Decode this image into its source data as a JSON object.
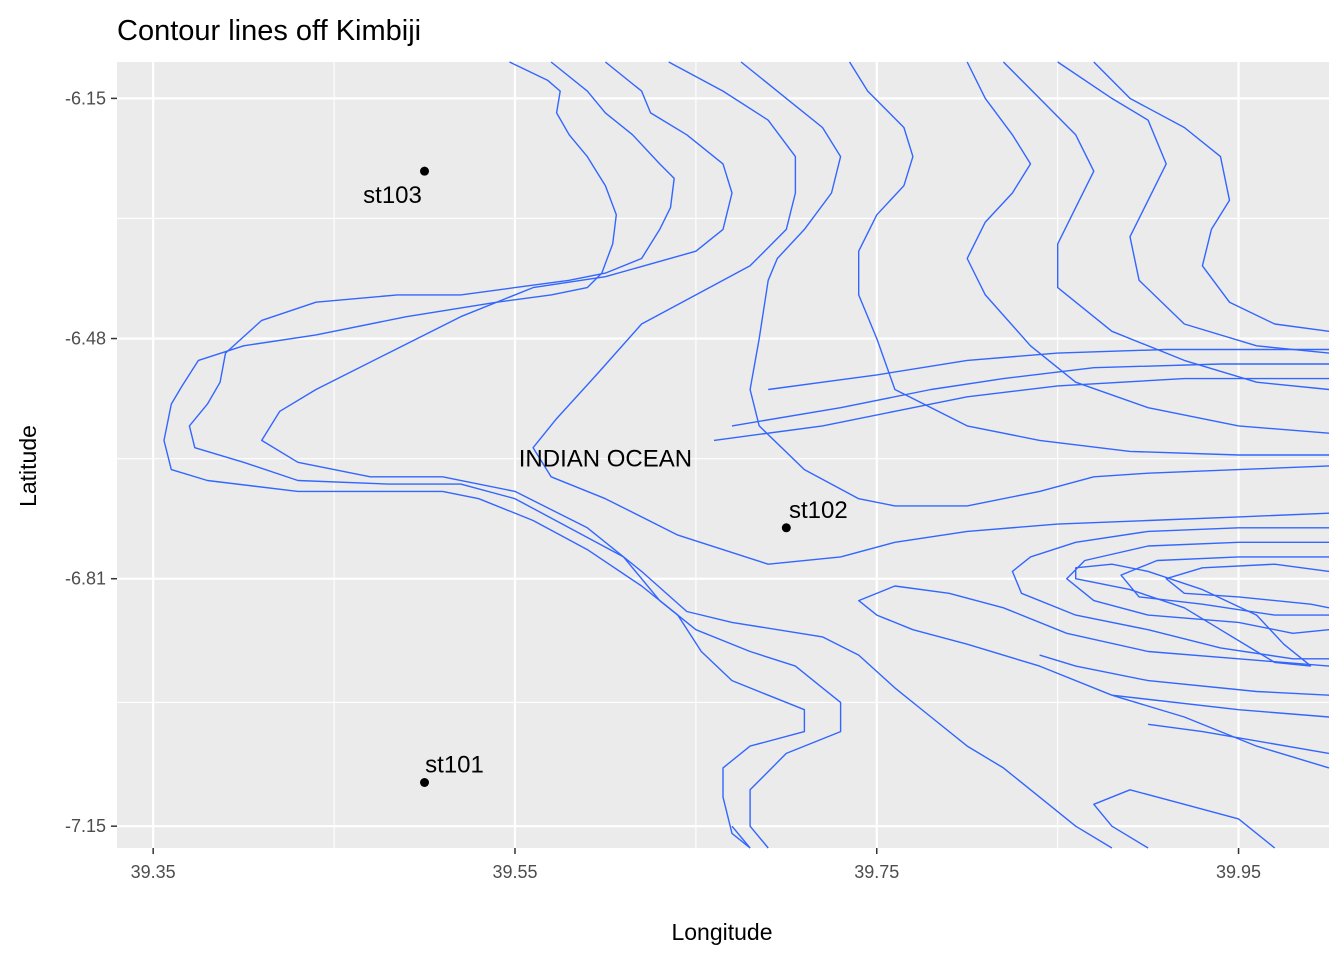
{
  "chart_data": {
    "type": "contour",
    "title": "Contour lines off Kimbiji",
    "xlabel": "Longitude",
    "ylabel": "Latitude",
    "xlim": [
      39.33,
      40.0
    ],
    "ylim": [
      -7.18,
      -6.1
    ],
    "x_ticks": [
      39.35,
      39.55,
      39.75,
      39.95
    ],
    "x_tick_labels": [
      "39.35",
      "39.55",
      "39.75",
      "39.95"
    ],
    "y_ticks": [
      -6.15,
      -6.48,
      -6.81,
      -7.15
    ],
    "y_tick_labels": [
      "-6.15",
      "-6.48",
      "-6.81",
      "-7.15"
    ],
    "grid": true,
    "contour_color": "#3366ff",
    "panel_background": "#ebebeb",
    "stations": [
      {
        "name": "st103",
        "lon": 39.5,
        "lat": -6.25
      },
      {
        "name": "st102",
        "lon": 39.7,
        "lat": -6.74
      },
      {
        "name": "st101",
        "lon": 39.5,
        "lat": -7.09
      }
    ],
    "annotation": {
      "text": "INDIAN OCEAN",
      "lon": 39.6,
      "lat": -6.645
    },
    "contours": [
      [
        [
          39.547,
          -6.1
        ],
        [
          39.568,
          -6.125
        ],
        [
          39.575,
          -6.14
        ],
        [
          39.573,
          -6.17
        ],
        [
          39.58,
          -6.2
        ],
        [
          39.59,
          -6.23
        ],
        [
          39.6,
          -6.27
        ],
        [
          39.606,
          -6.31
        ],
        [
          39.604,
          -6.35
        ],
        [
          39.598,
          -6.39
        ],
        [
          39.59,
          -6.41
        ],
        [
          39.57,
          -6.42
        ],
        [
          39.54,
          -6.43
        ],
        [
          39.49,
          -6.45
        ],
        [
          39.44,
          -6.475
        ],
        [
          39.4,
          -6.49
        ],
        [
          39.375,
          -6.51
        ],
        [
          39.366,
          -6.545
        ],
        [
          39.36,
          -6.57
        ],
        [
          39.356,
          -6.62
        ],
        [
          39.36,
          -6.66
        ],
        [
          39.38,
          -6.675
        ],
        [
          39.43,
          -6.69
        ],
        [
          39.47,
          -6.69
        ],
        [
          39.51,
          -6.69
        ],
        [
          39.53,
          -6.7
        ],
        [
          39.56,
          -6.73
        ],
        [
          39.59,
          -6.77
        ],
        [
          39.62,
          -6.82
        ],
        [
          39.64,
          -6.86
        ],
        [
          39.653,
          -6.91
        ],
        [
          39.67,
          -6.95
        ],
        [
          39.69,
          -6.97
        ],
        [
          39.71,
          -6.99
        ],
        [
          39.71,
          -7.02
        ],
        [
          39.68,
          -7.04
        ],
        [
          39.665,
          -7.07
        ],
        [
          39.665,
          -7.11
        ],
        [
          39.67,
          -7.16
        ],
        [
          39.68,
          -7.18
        ]
      ],
      [
        [
          39.57,
          -6.1
        ],
        [
          39.59,
          -6.14
        ],
        [
          39.6,
          -6.17
        ],
        [
          39.615,
          -6.2
        ],
        [
          39.63,
          -6.24
        ],
        [
          39.638,
          -6.26
        ],
        [
          39.636,
          -6.3
        ],
        [
          39.63,
          -6.33
        ],
        [
          39.62,
          -6.37
        ],
        [
          39.6,
          -6.39
        ],
        [
          39.58,
          -6.4
        ],
        [
          39.55,
          -6.41
        ],
        [
          39.52,
          -6.42
        ],
        [
          39.485,
          -6.42
        ],
        [
          39.44,
          -6.43
        ],
        [
          39.41,
          -6.455
        ],
        [
          39.39,
          -6.5
        ],
        [
          39.387,
          -6.54
        ],
        [
          39.38,
          -6.57
        ],
        [
          39.37,
          -6.6
        ],
        [
          39.373,
          -6.63
        ],
        [
          39.4,
          -6.65
        ],
        [
          39.43,
          -6.675
        ],
        [
          39.48,
          -6.68
        ],
        [
          39.52,
          -6.68
        ],
        [
          39.55,
          -6.7
        ],
        [
          39.58,
          -6.74
        ],
        [
          39.61,
          -6.78
        ],
        [
          39.63,
          -6.84
        ],
        [
          39.65,
          -6.88
        ],
        [
          39.68,
          -6.91
        ],
        [
          39.705,
          -6.93
        ],
        [
          39.72,
          -6.96
        ],
        [
          39.73,
          -6.98
        ],
        [
          39.73,
          -7.02
        ],
        [
          39.7,
          -7.05
        ],
        [
          39.68,
          -7.1
        ],
        [
          39.68,
          -7.15
        ],
        [
          39.69,
          -7.18
        ]
      ],
      [
        [
          39.6,
          -6.1
        ],
        [
          39.62,
          -6.14
        ],
        [
          39.625,
          -6.17
        ],
        [
          39.645,
          -6.2
        ],
        [
          39.665,
          -6.24
        ],
        [
          39.67,
          -6.28
        ],
        [
          39.665,
          -6.33
        ],
        [
          39.65,
          -6.36
        ],
        [
          39.6,
          -6.395
        ],
        [
          39.56,
          -6.41
        ],
        [
          39.52,
          -6.45
        ],
        [
          39.48,
          -6.5
        ],
        [
          39.44,
          -6.55
        ],
        [
          39.42,
          -6.58
        ],
        [
          39.41,
          -6.62
        ],
        [
          39.43,
          -6.65
        ],
        [
          39.47,
          -6.67
        ],
        [
          39.51,
          -6.67
        ],
        [
          39.55,
          -6.69
        ],
        [
          39.59,
          -6.74
        ],
        [
          39.62,
          -6.8
        ],
        [
          39.645,
          -6.855
        ],
        [
          39.67,
          -6.87
        ],
        [
          39.72,
          -6.89
        ],
        [
          39.74,
          -6.915
        ],
        [
          39.76,
          -6.96
        ],
        [
          39.78,
          -7.0
        ],
        [
          39.8,
          -7.04
        ],
        [
          39.82,
          -7.07
        ],
        [
          39.84,
          -7.11
        ],
        [
          39.86,
          -7.15
        ],
        [
          39.88,
          -7.18
        ]
      ],
      [
        [
          39.635,
          -6.1
        ],
        [
          39.665,
          -6.14
        ],
        [
          39.69,
          -6.18
        ],
        [
          39.705,
          -6.23
        ],
        [
          39.705,
          -6.28
        ],
        [
          39.7,
          -6.33
        ],
        [
          39.68,
          -6.38
        ],
        [
          39.65,
          -6.42
        ],
        [
          39.62,
          -6.46
        ],
        [
          39.595,
          -6.53
        ],
        [
          39.573,
          -6.59
        ],
        [
          39.56,
          -6.63
        ],
        [
          39.57,
          -6.67
        ],
        [
          39.6,
          -6.7
        ],
        [
          39.64,
          -6.75
        ],
        [
          39.69,
          -6.79
        ],
        [
          39.73,
          -6.78
        ],
        [
          39.76,
          -6.76
        ],
        [
          39.8,
          -6.745
        ],
        [
          39.85,
          -6.735
        ],
        [
          39.9,
          -6.73
        ],
        [
          39.95,
          -6.725
        ],
        [
          40.0,
          -6.72
        ]
      ],
      [
        [
          39.675,
          -6.1
        ],
        [
          39.7,
          -6.15
        ],
        [
          39.72,
          -6.19
        ],
        [
          39.73,
          -6.23
        ],
        [
          39.725,
          -6.28
        ],
        [
          39.71,
          -6.33
        ],
        [
          39.695,
          -6.37
        ],
        [
          39.69,
          -6.4
        ],
        [
          39.685,
          -6.48
        ],
        [
          39.68,
          -6.55
        ],
        [
          39.685,
          -6.6
        ],
        [
          39.71,
          -6.66
        ],
        [
          39.74,
          -6.7
        ],
        [
          39.76,
          -6.71
        ],
        [
          39.8,
          -6.71
        ],
        [
          39.84,
          -6.69
        ],
        [
          39.87,
          -6.67
        ],
        [
          39.9,
          -6.665
        ],
        [
          39.95,
          -6.66
        ],
        [
          40.0,
          -6.655
        ]
      ],
      [
        [
          39.735,
          -6.1
        ],
        [
          39.745,
          -6.14
        ],
        [
          39.765,
          -6.19
        ],
        [
          39.77,
          -6.23
        ],
        [
          39.765,
          -6.27
        ],
        [
          39.75,
          -6.31
        ],
        [
          39.74,
          -6.36
        ],
        [
          39.74,
          -6.42
        ],
        [
          39.75,
          -6.48
        ],
        [
          39.76,
          -6.55
        ],
        [
          39.8,
          -6.6
        ],
        [
          39.84,
          -6.62
        ],
        [
          39.89,
          -6.635
        ],
        [
          39.95,
          -6.64
        ],
        [
          40.0,
          -6.64
        ]
      ],
      [
        [
          39.8,
          -6.1
        ],
        [
          39.81,
          -6.15
        ],
        [
          39.825,
          -6.2
        ],
        [
          39.835,
          -6.24
        ],
        [
          39.825,
          -6.28
        ],
        [
          39.81,
          -6.32
        ],
        [
          39.8,
          -6.37
        ],
        [
          39.81,
          -6.42
        ],
        [
          39.835,
          -6.49
        ],
        [
          39.86,
          -6.54
        ],
        [
          39.9,
          -6.575
        ],
        [
          39.95,
          -6.6
        ],
        [
          40.0,
          -6.61
        ]
      ],
      [
        [
          39.82,
          -6.1
        ],
        [
          39.84,
          -6.15
        ],
        [
          39.86,
          -6.2
        ],
        [
          39.87,
          -6.25
        ],
        [
          39.86,
          -6.3
        ],
        [
          39.85,
          -6.35
        ],
        [
          39.85,
          -6.41
        ],
        [
          39.88,
          -6.47
        ],
        [
          39.92,
          -6.51
        ],
        [
          39.96,
          -6.54
        ],
        [
          40.0,
          -6.55
        ]
      ],
      [
        [
          39.85,
          -6.1
        ],
        [
          39.88,
          -6.15
        ],
        [
          39.9,
          -6.18
        ],
        [
          39.91,
          -6.24
        ],
        [
          39.9,
          -6.29
        ],
        [
          39.89,
          -6.34
        ],
        [
          39.895,
          -6.4
        ],
        [
          39.92,
          -6.46
        ],
        [
          39.96,
          -6.49
        ],
        [
          40.0,
          -6.5
        ]
      ],
      [
        [
          39.87,
          -6.1
        ],
        [
          39.89,
          -6.15
        ],
        [
          39.92,
          -6.19
        ],
        [
          39.94,
          -6.23
        ],
        [
          39.945,
          -6.29
        ],
        [
          39.935,
          -6.33
        ],
        [
          39.93,
          -6.38
        ],
        [
          39.945,
          -6.43
        ],
        [
          39.97,
          -6.46
        ],
        [
          40.0,
          -6.47
        ]
      ],
      [
        [
          39.66,
          -6.62
        ],
        [
          39.72,
          -6.6
        ],
        [
          39.76,
          -6.58
        ],
        [
          39.8,
          -6.56
        ],
        [
          39.85,
          -6.545
        ],
        [
          39.92,
          -6.535
        ],
        [
          40.0,
          -6.535
        ]
      ],
      [
        [
          39.67,
          -6.6
        ],
        [
          39.73,
          -6.575
        ],
        [
          39.78,
          -6.55
        ],
        [
          39.82,
          -6.535
        ],
        [
          39.87,
          -6.52
        ],
        [
          39.94,
          -6.515
        ],
        [
          40.0,
          -6.515
        ]
      ],
      [
        [
          39.69,
          -6.55
        ],
        [
          39.75,
          -6.53
        ],
        [
          39.8,
          -6.51
        ],
        [
          39.85,
          -6.5
        ],
        [
          39.91,
          -6.495
        ],
        [
          40.0,
          -6.495
        ]
      ],
      [
        [
          40.0,
          -6.93
        ],
        [
          39.95,
          -6.92
        ],
        [
          39.9,
          -6.91
        ],
        [
          39.855,
          -6.885
        ],
        [
          39.82,
          -6.85
        ],
        [
          39.79,
          -6.83
        ],
        [
          39.76,
          -6.82
        ],
        [
          39.74,
          -6.84
        ],
        [
          39.75,
          -6.86
        ],
        [
          39.77,
          -6.88
        ],
        [
          39.8,
          -6.9
        ],
        [
          39.84,
          -6.93
        ],
        [
          39.88,
          -6.97
        ],
        [
          39.92,
          -7.0
        ],
        [
          39.96,
          -7.04
        ],
        [
          40.0,
          -7.07
        ]
      ],
      [
        [
          40.0,
          -6.97
        ],
        [
          39.96,
          -6.965
        ],
        [
          39.9,
          -6.95
        ],
        [
          39.86,
          -6.93
        ],
        [
          39.84,
          -6.915
        ]
      ],
      [
        [
          40.0,
          -7.0
        ],
        [
          39.95,
          -6.99
        ],
        [
          39.88,
          -6.97
        ]
      ],
      [
        [
          40.0,
          -7.05
        ],
        [
          39.93,
          -7.02
        ],
        [
          39.9,
          -7.01
        ]
      ],
      [
        [
          39.97,
          -7.18
        ],
        [
          39.95,
          -7.14
        ],
        [
          39.92,
          -7.12
        ],
        [
          39.89,
          -7.1
        ],
        [
          39.87,
          -7.12
        ],
        [
          39.88,
          -7.15
        ],
        [
          39.9,
          -7.18
        ]
      ],
      [
        [
          39.68,
          -7.18
        ],
        [
          39.67,
          -7.15
        ]
      ],
      [
        [
          40.0,
          -6.74
        ],
        [
          39.95,
          -6.74
        ],
        [
          39.9,
          -6.745
        ],
        [
          39.86,
          -6.76
        ],
        [
          39.835,
          -6.78
        ],
        [
          39.825,
          -6.8
        ],
        [
          39.83,
          -6.83
        ],
        [
          39.86,
          -6.86
        ],
        [
          39.9,
          -6.88
        ],
        [
          39.94,
          -6.905
        ],
        [
          39.98,
          -6.92
        ],
        [
          40.0,
          -6.92
        ]
      ],
      [
        [
          40.0,
          -6.76
        ],
        [
          39.95,
          -6.76
        ],
        [
          39.9,
          -6.765
        ],
        [
          39.865,
          -6.785
        ],
        [
          39.855,
          -6.81
        ],
        [
          39.87,
          -6.84
        ],
        [
          39.9,
          -6.86
        ],
        [
          39.95,
          -6.87
        ],
        [
          39.98,
          -6.885
        ],
        [
          40.0,
          -6.88
        ]
      ],
      [
        [
          40.0,
          -6.78
        ],
        [
          39.95,
          -6.78
        ],
        [
          39.905,
          -6.785
        ],
        [
          39.885,
          -6.805
        ],
        [
          39.895,
          -6.835
        ],
        [
          39.93,
          -6.845
        ],
        [
          39.97,
          -6.86
        ],
        [
          40.0,
          -6.86
        ]
      ],
      [
        [
          40.0,
          -6.8
        ],
        [
          39.97,
          -6.79
        ],
        [
          39.93,
          -6.795
        ],
        [
          39.91,
          -6.81
        ],
        [
          39.92,
          -6.83
        ],
        [
          39.95,
          -6.835
        ],
        [
          39.99,
          -6.845
        ],
        [
          40.0,
          -6.85
        ]
      ],
      [
        [
          39.99,
          -6.93
        ],
        [
          39.975,
          -6.9
        ],
        [
          39.96,
          -6.86
        ],
        [
          39.93,
          -6.825
        ],
        [
          39.9,
          -6.8
        ],
        [
          39.88,
          -6.79
        ],
        [
          39.86,
          -6.795
        ],
        [
          39.86,
          -6.81
        ],
        [
          39.89,
          -6.825
        ],
        [
          39.92,
          -6.85
        ],
        [
          39.94,
          -6.88
        ],
        [
          39.96,
          -6.91
        ],
        [
          39.97,
          -6.925
        ],
        [
          39.99,
          -6.93
        ]
      ]
    ]
  }
}
